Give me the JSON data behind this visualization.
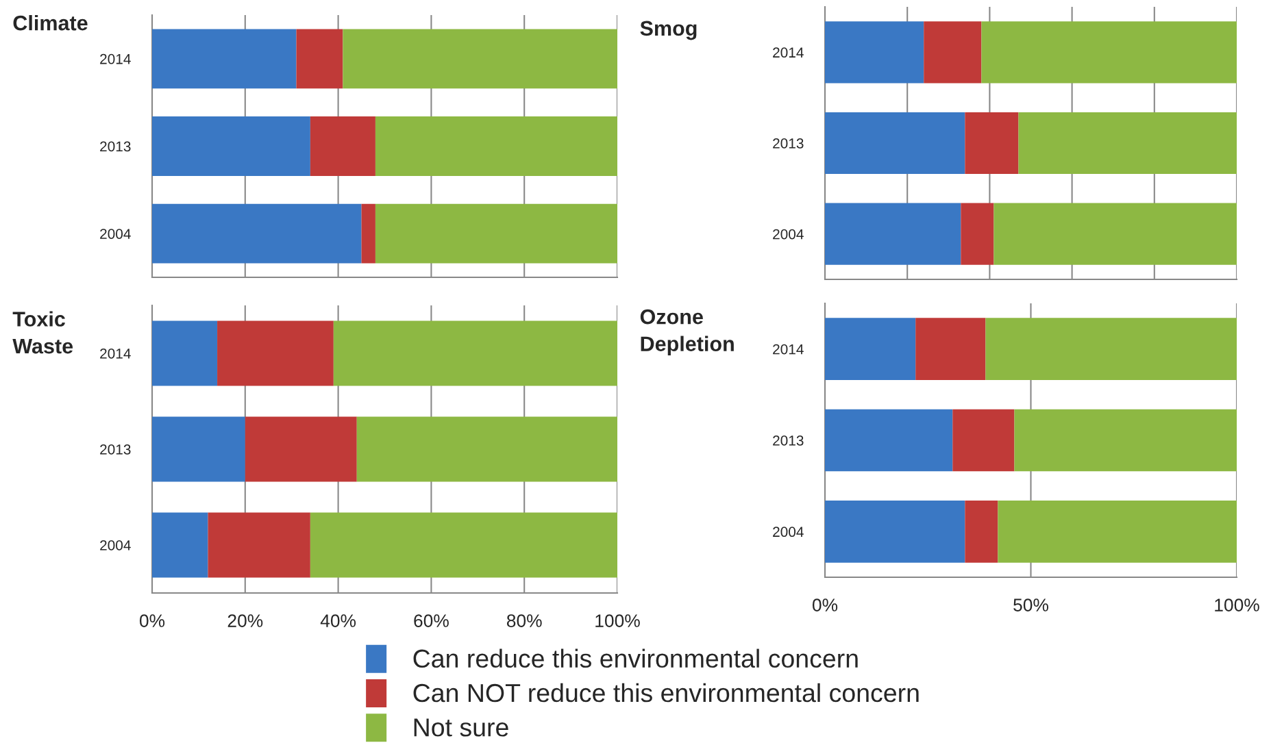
{
  "chart_data": [
    {
      "type": "bar",
      "orientation": "horizontal",
      "stacked": true,
      "title": "Climate",
      "categories": [
        "2014",
        "2013",
        "2004"
      ],
      "xlim": [
        0,
        100
      ],
      "xticks": [
        {
          "value": 0,
          "label": null
        },
        {
          "value": 20,
          "label": null
        },
        {
          "value": 40,
          "label": null
        },
        {
          "value": 60,
          "label": null
        },
        {
          "value": 80,
          "label": null
        },
        {
          "value": 100,
          "label": null
        }
      ],
      "tick_labels": "y",
      "grid": "x",
      "series": [
        {
          "color": "#3a78c4",
          "values": [
            31,
            34,
            45
          ]
        },
        {
          "color": "#c03a38",
          "values": [
            10,
            14,
            3
          ]
        },
        {
          "color": "#8db843",
          "values": [
            59,
            52,
            52
          ]
        }
      ]
    },
    {
      "type": "bar",
      "orientation": "horizontal",
      "stacked": true,
      "title": "Toxic Waste",
      "categories": [
        "2014",
        "2013",
        "2004"
      ],
      "xlim": [
        0,
        100
      ],
      "xticks": [
        {
          "value": 0,
          "label": "0%"
        },
        {
          "value": 20,
          "label": "20%"
        },
        {
          "value": 40,
          "label": "40%"
        },
        {
          "value": 60,
          "label": "60%"
        },
        {
          "value": 80,
          "label": "80%"
        },
        {
          "value": 100,
          "label": "100%"
        }
      ],
      "grid": "x",
      "legend": "bottom",
      "series": [
        {
          "name": "Can reduce this environmental concern",
          "color": "#3a78c4",
          "values": [
            14,
            20,
            12
          ]
        },
        {
          "name": "Can NOT reduce this environmental concern",
          "color": "#c03a38",
          "values": [
            25,
            24,
            22
          ]
        },
        {
          "name": "Not sure",
          "color": "#8db843",
          "values": [
            61,
            56,
            66
          ]
        }
      ]
    },
    {
      "type": "bar",
      "orientation": "horizontal",
      "stacked": true,
      "title": "Smog",
      "categories": [
        "2014",
        "2013",
        "2004"
      ],
      "xlim": [
        0,
        100
      ],
      "xticks": [
        {
          "value": 0,
          "label": null
        },
        {
          "value": 20,
          "label": null
        },
        {
          "value": 40,
          "label": null
        },
        {
          "value": 60,
          "label": null
        },
        {
          "value": 80,
          "label": null
        },
        {
          "value": 100,
          "label": null
        }
      ],
      "tick_labels": "y",
      "grid": "x",
      "series": [
        {
          "color": "#3a78c4",
          "values": [
            24,
            34,
            33
          ]
        },
        {
          "color": "#c03a38",
          "values": [
            14,
            13,
            8
          ]
        },
        {
          "color": "#8db843",
          "values": [
            62,
            53,
            59
          ]
        }
      ]
    },
    {
      "type": "bar",
      "orientation": "horizontal",
      "stacked": true,
      "title": "Ozone Depletion",
      "categories": [
        "2014",
        "2013",
        "2004"
      ],
      "xlim": [
        0,
        100
      ],
      "xticks": [
        {
          "value": 0,
          "label": "0%"
        },
        {
          "value": 50,
          "label": "50%"
        },
        {
          "value": 100,
          "label": "100%"
        }
      ],
      "grid": "x",
      "series": [
        {
          "color": "#3a78c4",
          "values": [
            22,
            31,
            34
          ]
        },
        {
          "color": "#c03a38",
          "values": [
            17,
            15,
            8
          ]
        },
        {
          "color": "#8db843",
          "values": [
            61,
            54,
            58
          ]
        }
      ]
    }
  ]
}
